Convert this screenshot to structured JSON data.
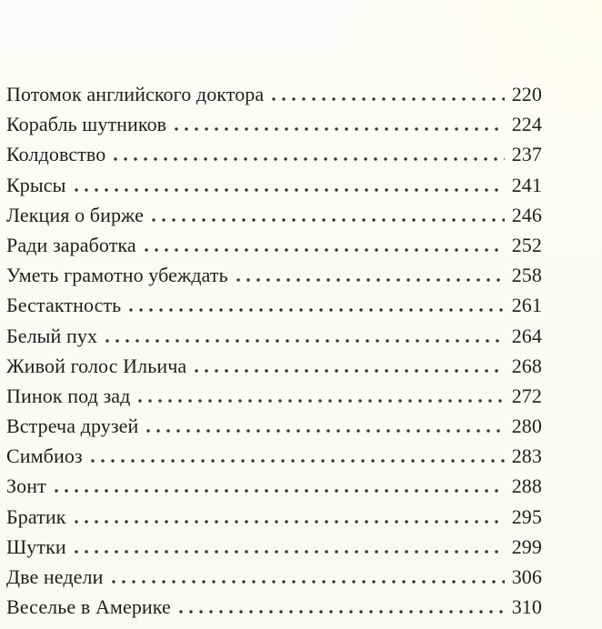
{
  "page": {
    "kind": "book-table-of-contents-scan",
    "background_color": "#fbfaf6",
    "corner_tint_color": "#fffdf0",
    "text_color": "#201f1d",
    "dot_leader_color": "#38362f"
  },
  "toc": {
    "entries": [
      {
        "title": "Потомок английского доктора",
        "page": "220"
      },
      {
        "title": "Корабль шутников",
        "page": "224"
      },
      {
        "title": "Колдовство",
        "page": "237"
      },
      {
        "title": "Крысы",
        "page": "241"
      },
      {
        "title": "Лекция о бирже",
        "page": "246"
      },
      {
        "title": "Ради заработка",
        "page": "252"
      },
      {
        "title": "Уметь грамотно убеждать",
        "page": "258"
      },
      {
        "title": "Бестактность",
        "page": "261"
      },
      {
        "title": "Белый пух",
        "page": "264"
      },
      {
        "title": "Живой голос Ильича",
        "page": "268"
      },
      {
        "title": "Пинок под зад",
        "page": "272"
      },
      {
        "title": "Встреча друзей",
        "page": "280"
      },
      {
        "title": "Симбиоз",
        "page": "283"
      },
      {
        "title": "Зонт",
        "page": "288"
      },
      {
        "title": "Братик",
        "page": "295"
      },
      {
        "title": "Шутки",
        "page": "299"
      },
      {
        "title": "Две недели",
        "page": "306"
      },
      {
        "title": "Веселье в Америке",
        "page": "310"
      }
    ]
  }
}
